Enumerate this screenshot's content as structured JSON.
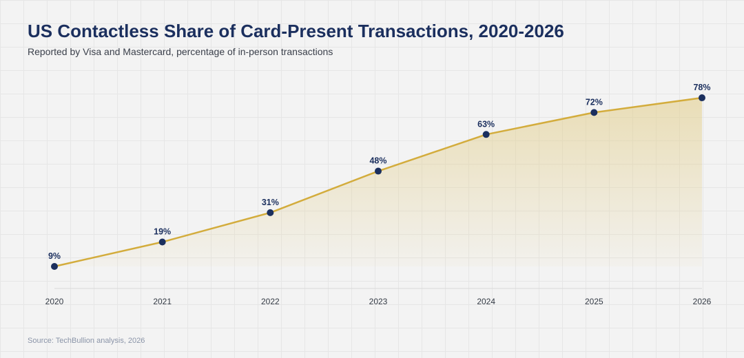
{
  "title": "US Contactless Share of Card-Present Transactions, 2020-2026",
  "subtitle": "Reported by Visa and Mastercard, percentage of in-person transactions",
  "source": "Source: TechBullion analysis, 2026",
  "colors": {
    "background": "#f3f3f3",
    "gridline": "#e6e6e6",
    "line": "#d3ac3c",
    "area_fill": "#e3cf8e",
    "marker": "#1b2f5e",
    "title": "#1b2f5e"
  },
  "chart_data": {
    "type": "area",
    "title": "US Contactless Share of Card-Present Transactions, 2020-2026",
    "subtitle": "Reported by Visa and Mastercard, percentage of in-person transactions",
    "xlabel": "",
    "ylabel": "",
    "categories": [
      "2020",
      "2021",
      "2022",
      "2023",
      "2024",
      "2025",
      "2026"
    ],
    "values": [
      9,
      19,
      31,
      48,
      63,
      72,
      78
    ],
    "data_labels": [
      "9%",
      "19%",
      "31%",
      "48%",
      "63%",
      "72%",
      "78%"
    ],
    "unit": "%",
    "ylim": [
      0,
      80
    ],
    "grid": true,
    "legend": "none"
  }
}
